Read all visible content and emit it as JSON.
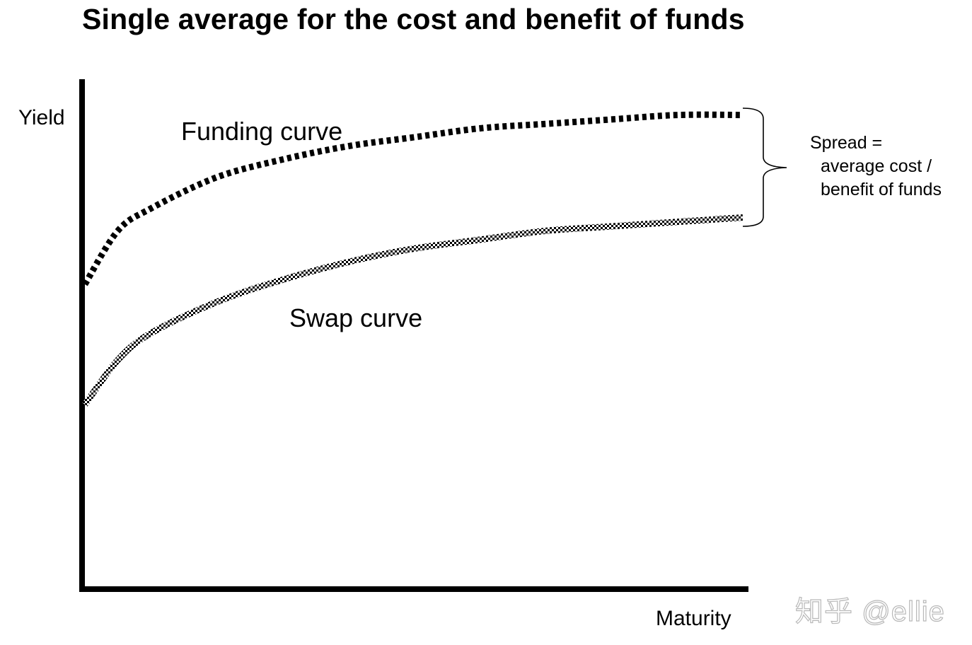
{
  "title": "Single average for the cost and benefit of funds",
  "chart_data": {
    "type": "line",
    "title": "Single average for the cost and benefit of funds",
    "xlabel": "Maturity",
    "ylabel": "Yield",
    "xlim": [
      0,
      1
    ],
    "ylim": [
      0,
      1
    ],
    "grid": false,
    "series": [
      {
        "name": "Funding curve",
        "style": "dashed",
        "x": [
          0,
          0.05,
          0.1,
          0.2,
          0.3,
          0.4,
          0.5,
          0.6,
          0.7,
          0.8,
          0.9,
          1.0
        ],
        "y": [
          0.6,
          0.72,
          0.77,
          0.84,
          0.88,
          0.91,
          0.93,
          0.95,
          0.96,
          0.97,
          0.98,
          0.98
        ]
      },
      {
        "name": "Swap curve",
        "style": "checkered",
        "x": [
          0,
          0.05,
          0.1,
          0.2,
          0.3,
          0.4,
          0.5,
          0.6,
          0.7,
          0.8,
          0.9,
          1.0
        ],
        "y": [
          0.33,
          0.43,
          0.49,
          0.56,
          0.61,
          0.65,
          0.68,
          0.7,
          0.72,
          0.73,
          0.74,
          0.75
        ]
      }
    ],
    "annotations": [
      {
        "text_lines": [
          "Spread =",
          "average cost /",
          "benefit of funds"
        ],
        "placement": "right of curve ends, with brace"
      }
    ]
  },
  "labels": {
    "yield": "Yield",
    "maturity": "Maturity",
    "funding_curve": "Funding curve",
    "swap_curve": "Swap curve",
    "spread_line1": "Spread =",
    "spread_line2": "average cost /",
    "spread_line3": "benefit of funds"
  },
  "watermark": "知乎 @ellie",
  "colors": {
    "ink": "#000000",
    "background": "#ffffff",
    "watermark": "#b8b8b8"
  }
}
